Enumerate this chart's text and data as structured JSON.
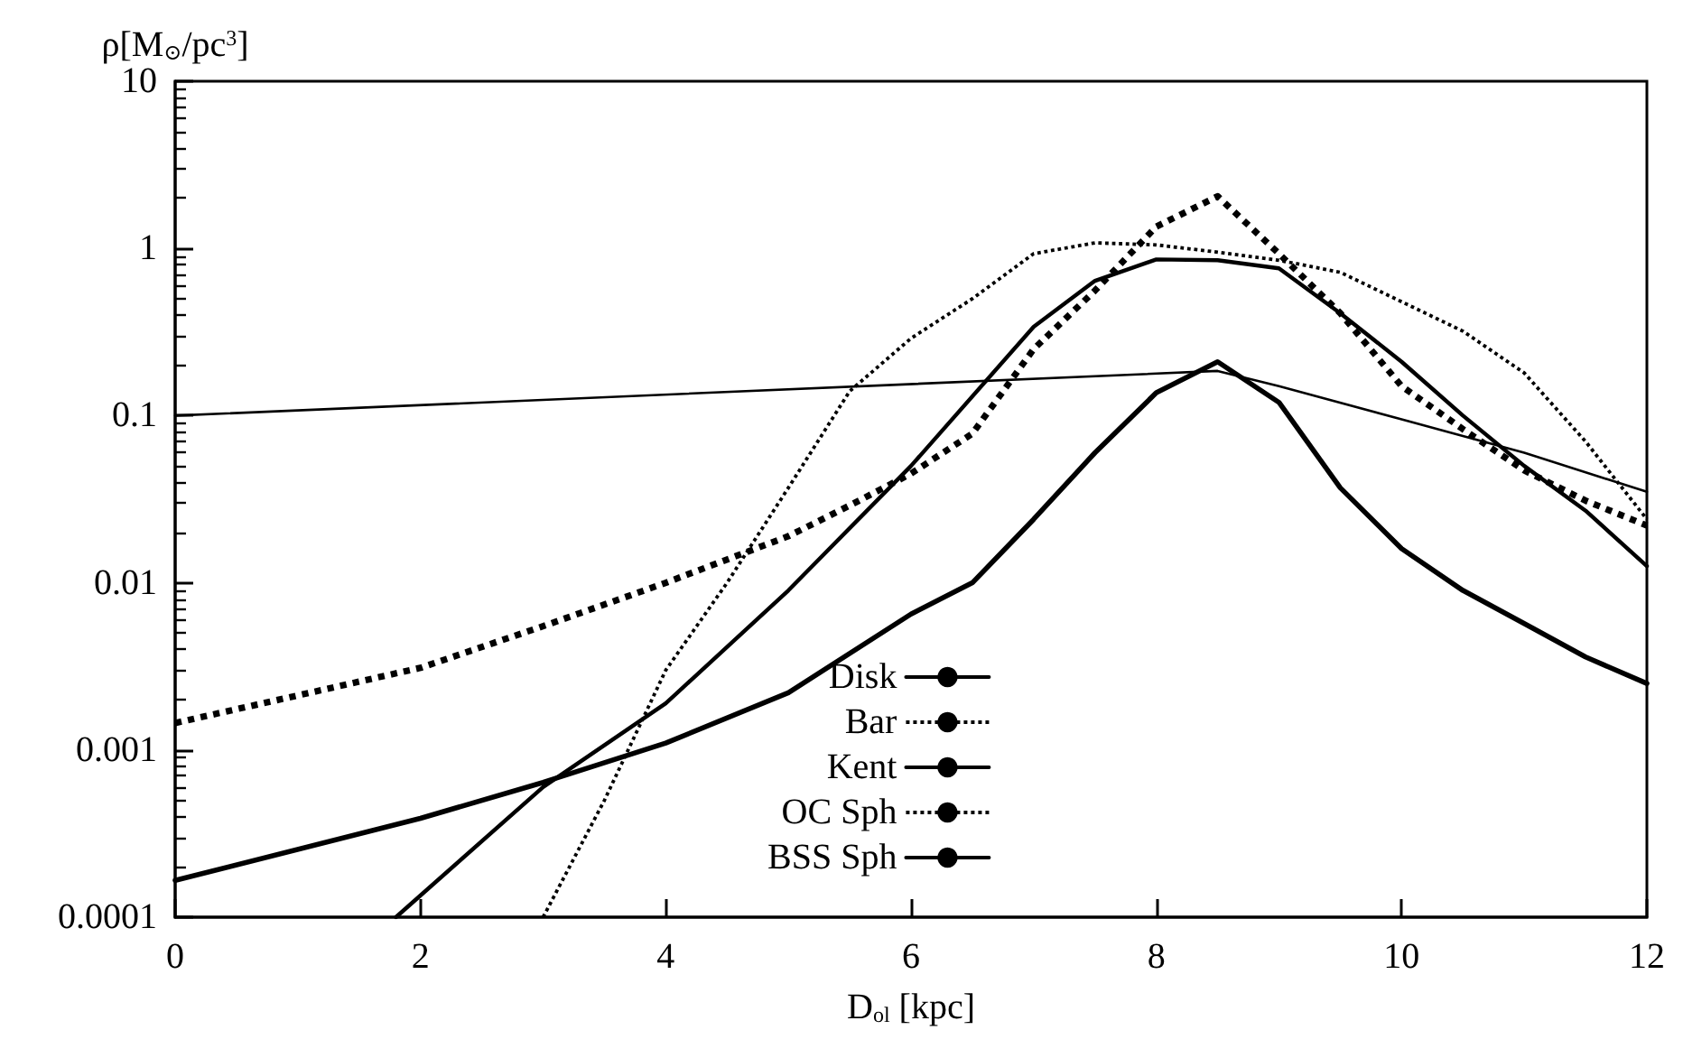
{
  "chart_data": {
    "type": "line",
    "xlabel": "D$_{ol}$ [kpc]",
    "ylabel": "ρ[M$_{⊙}$/pc$^{3}$]",
    "xlim": [
      0,
      12
    ],
    "xticks": [
      0,
      2,
      4,
      6,
      8,
      10,
      12
    ],
    "ylim": [
      0.0001,
      10
    ],
    "yticks": [
      0.0001,
      0.001,
      0.01,
      0.1,
      1,
      10
    ],
    "log": "y",
    "grid": false,
    "legend": "bottom",
    "marker": "none",
    "series": [
      {
        "name": "Disk",
        "color": "#000000",
        "line_style": "solid",
        "x": [
          0,
          8.5,
          9,
          10,
          11,
          12
        ],
        "values": [
          0.1,
          0.185,
          0.15,
          0.095,
          0.06,
          0.035
        ]
      },
      {
        "name": "Bar",
        "color": "#000000",
        "line_style": "dotted",
        "x": [
          3,
          3.5,
          4,
          4.5,
          5,
          5.5,
          6,
          6.5,
          7,
          7.5,
          8,
          8.5,
          9,
          9.5,
          10,
          10.5,
          11,
          11.5,
          12
        ],
        "values": [
          0.0001,
          0.0005,
          0.003,
          0.01,
          0.037,
          0.14,
          0.29,
          0.5,
          0.93,
          1.08,
          1.05,
          0.95,
          0.85,
          0.72,
          0.48,
          0.32,
          0.18,
          0.07,
          0.024
        ]
      },
      {
        "name": "Kent",
        "color": "#000000",
        "line_style": "solid",
        "x": [
          1.8,
          3,
          4,
          5,
          6,
          7,
          7.5,
          8,
          8.5,
          9,
          9.5,
          10,
          10.5,
          11,
          11.5,
          12
        ],
        "values": [
          0.0001,
          0.0006,
          0.0019,
          0.009,
          0.05,
          0.34,
          0.64,
          0.86,
          0.85,
          0.76,
          0.41,
          0.21,
          0.1,
          0.05,
          0.027,
          0.0126
        ]
      },
      {
        "name": "OC Sph",
        "color": "#000000",
        "line_style": "dotted",
        "x": [
          0,
          2,
          3,
          4,
          5,
          5.5,
          6,
          6.5,
          7,
          7.5,
          8,
          8.5,
          9,
          9.5,
          10,
          10.5,
          11,
          11.5,
          12
        ],
        "values": [
          0.00145,
          0.0031,
          0.0055,
          0.01,
          0.019,
          0.029,
          0.045,
          0.078,
          0.25,
          0.56,
          1.35,
          2.05,
          0.93,
          0.41,
          0.15,
          0.083,
          0.047,
          0.031,
          0.022
        ]
      },
      {
        "name": "BSS Sph",
        "color": "#000000",
        "line_style": "solid",
        "x": [
          0,
          2,
          3,
          4,
          5,
          6,
          6.5,
          7,
          7.5,
          8,
          8.5,
          9,
          9.5,
          10,
          10.5,
          11,
          11.5,
          12
        ],
        "values": [
          0.000166,
          0.00039,
          0.00064,
          0.0011,
          0.0022,
          0.0065,
          0.01,
          0.024,
          0.06,
          0.137,
          0.21,
          0.12,
          0.037,
          0.016,
          0.009,
          0.0057,
          0.0036,
          0.0025
        ]
      }
    ]
  }
}
